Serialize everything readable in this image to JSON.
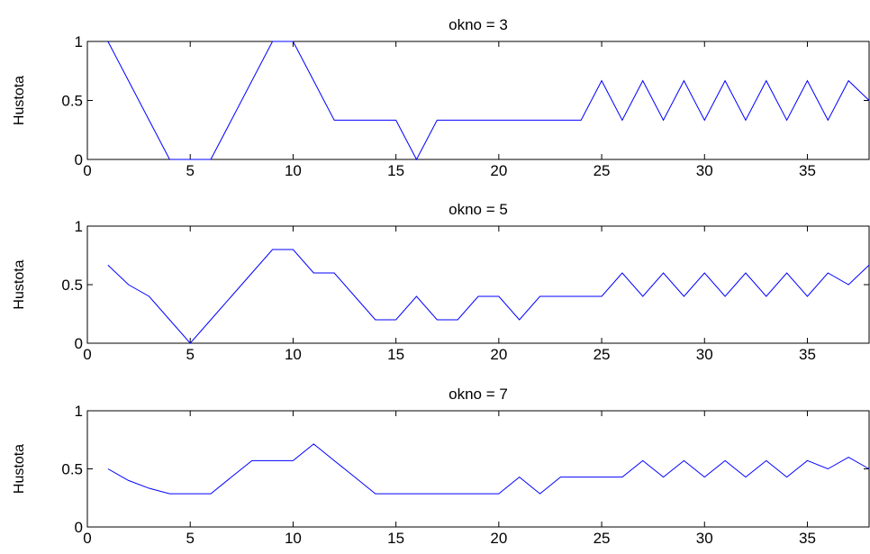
{
  "chart_data": [
    {
      "type": "line",
      "title": "okno = 3",
      "xlabel": "",
      "ylabel": "Hustota",
      "xlim": [
        0,
        38
      ],
      "ylim": [
        0,
        1
      ],
      "xticks": [
        "0",
        "5",
        "10",
        "15",
        "20",
        "25",
        "30",
        "35"
      ],
      "yticks": [
        "0",
        "0.5",
        "1"
      ],
      "grid": false,
      "color": "#0000ff",
      "x": [
        1,
        2,
        3,
        4,
        5,
        6,
        7,
        8,
        9,
        10,
        11,
        12,
        13,
        14,
        15,
        16,
        17,
        18,
        19,
        20,
        21,
        22,
        23,
        24,
        25,
        26,
        27,
        28,
        29,
        30,
        31,
        32,
        33,
        34,
        35,
        36,
        37,
        38
      ],
      "y": [
        1,
        0.667,
        0.333,
        0,
        0,
        0,
        0.333,
        0.667,
        1,
        1,
        0.667,
        0.333,
        0.333,
        0.333,
        0.333,
        0,
        0.333,
        0.333,
        0.333,
        0.333,
        0.333,
        0.333,
        0.333,
        0.333,
        0.667,
        0.333,
        0.667,
        0.333,
        0.667,
        0.333,
        0.667,
        0.333,
        0.667,
        0.333,
        0.667,
        0.333,
        0.667,
        0.5
      ]
    },
    {
      "type": "line",
      "title": "okno = 5",
      "xlabel": "",
      "ylabel": "Hustota",
      "xlim": [
        0,
        38
      ],
      "ylim": [
        0,
        1
      ],
      "xticks": [
        "0",
        "5",
        "10",
        "15",
        "20",
        "25",
        "30",
        "35"
      ],
      "yticks": [
        "0",
        "0.5",
        "1"
      ],
      "grid": false,
      "color": "#0000ff",
      "x": [
        1,
        2,
        3,
        4,
        5,
        6,
        7,
        8,
        9,
        10,
        11,
        12,
        13,
        14,
        15,
        16,
        17,
        18,
        19,
        20,
        21,
        22,
        23,
        24,
        25,
        26,
        27,
        28,
        29,
        30,
        31,
        32,
        33,
        34,
        35,
        36,
        37,
        38
      ],
      "y": [
        0.667,
        0.5,
        0.4,
        0.2,
        0,
        0.2,
        0.4,
        0.6,
        0.8,
        0.8,
        0.6,
        0.6,
        0.4,
        0.2,
        0.2,
        0.4,
        0.2,
        0.2,
        0.4,
        0.4,
        0.2,
        0.4,
        0.4,
        0.4,
        0.4,
        0.6,
        0.4,
        0.6,
        0.4,
        0.6,
        0.4,
        0.6,
        0.4,
        0.6,
        0.4,
        0.6,
        0.5,
        0.667
      ]
    },
    {
      "type": "line",
      "title": "okno = 7",
      "xlabel": "",
      "ylabel": "Hustota",
      "xlim": [
        0,
        38
      ],
      "ylim": [
        0,
        1
      ],
      "xticks": [
        "0",
        "5",
        "10",
        "15",
        "20",
        "25",
        "30",
        "35"
      ],
      "yticks": [
        "0",
        "0.5",
        "1"
      ],
      "grid": false,
      "color": "#0000ff",
      "x": [
        1,
        2,
        3,
        4,
        5,
        6,
        7,
        8,
        9,
        10,
        11,
        12,
        13,
        14,
        15,
        16,
        17,
        18,
        19,
        20,
        21,
        22,
        23,
        24,
        25,
        26,
        27,
        28,
        29,
        30,
        31,
        32,
        33,
        34,
        35,
        36,
        37,
        38
      ],
      "y": [
        0.5,
        0.4,
        0.333,
        0.286,
        0.286,
        0.286,
        0.429,
        0.571,
        0.571,
        0.571,
        0.714,
        0.571,
        0.429,
        0.286,
        0.286,
        0.286,
        0.286,
        0.286,
        0.286,
        0.286,
        0.429,
        0.286,
        0.429,
        0.429,
        0.429,
        0.429,
        0.571,
        0.429,
        0.571,
        0.429,
        0.571,
        0.429,
        0.571,
        0.429,
        0.571,
        0.5,
        0.6,
        0.5
      ]
    }
  ]
}
